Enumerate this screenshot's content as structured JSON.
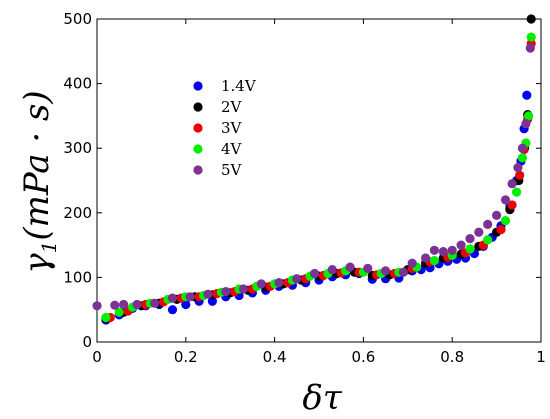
{
  "chart_data": {
    "type": "scatter",
    "title": "",
    "xlabel": "δτ",
    "ylabel_parts": {
      "symbol": "γ",
      "sub": "1",
      "units": "(mPa · s)"
    },
    "xlim": [
      0,
      1
    ],
    "ylim": [
      0,
      500
    ],
    "xticks": [
      "0",
      "0.2",
      "0.4",
      "0.6",
      "0.8",
      "1"
    ],
    "yticks": [
      "0",
      "100",
      "200",
      "300",
      "400",
      "500"
    ],
    "grid": false,
    "legend_position": "top-left-inside",
    "series": [
      {
        "name": "1.4V",
        "color": "#0000ee",
        "points": [
          [
            0.02,
            34
          ],
          [
            0.05,
            42
          ],
          [
            0.08,
            52
          ],
          [
            0.11,
            56
          ],
          [
            0.14,
            58
          ],
          [
            0.17,
            50
          ],
          [
            0.2,
            58
          ],
          [
            0.23,
            63
          ],
          [
            0.26,
            63
          ],
          [
            0.29,
            70
          ],
          [
            0.32,
            72
          ],
          [
            0.35,
            76
          ],
          [
            0.38,
            80
          ],
          [
            0.41,
            86
          ],
          [
            0.44,
            88
          ],
          [
            0.47,
            92
          ],
          [
            0.5,
            96
          ],
          [
            0.53,
            101
          ],
          [
            0.56,
            104
          ],
          [
            0.59,
            106
          ],
          [
            0.62,
            97
          ],
          [
            0.65,
            98
          ],
          [
            0.68,
            99
          ],
          [
            0.71,
            110
          ],
          [
            0.73,
            112
          ],
          [
            0.75,
            115
          ],
          [
            0.77,
            121
          ],
          [
            0.79,
            125
          ],
          [
            0.81,
            128
          ],
          [
            0.83,
            130
          ],
          [
            0.85,
            137
          ],
          [
            0.87,
            148
          ],
          [
            0.89,
            162
          ],
          [
            0.91,
            180
          ],
          [
            0.93,
            210
          ],
          [
            0.945,
            250
          ],
          [
            0.955,
            280
          ],
          [
            0.962,
            330
          ],
          [
            0.968,
            382
          ]
        ]
      },
      {
        "name": "2V",
        "color": "#000000",
        "points": [
          [
            0.02,
            36
          ],
          [
            0.06,
            46
          ],
          [
            0.1,
            56
          ],
          [
            0.14,
            60
          ],
          [
            0.18,
            66
          ],
          [
            0.22,
            70
          ],
          [
            0.26,
            73
          ],
          [
            0.3,
            76
          ],
          [
            0.34,
            80
          ],
          [
            0.38,
            85
          ],
          [
            0.42,
            90
          ],
          [
            0.46,
            96
          ],
          [
            0.5,
            102
          ],
          [
            0.54,
            106
          ],
          [
            0.58,
            108
          ],
          [
            0.62,
            103
          ],
          [
            0.66,
            104
          ],
          [
            0.7,
            112
          ],
          [
            0.74,
            122
          ],
          [
            0.78,
            130
          ],
          [
            0.82,
            136
          ],
          [
            0.86,
            148
          ],
          [
            0.9,
            170
          ],
          [
            0.93,
            205
          ],
          [
            0.95,
            250
          ],
          [
            0.963,
            300
          ],
          [
            0.97,
            352
          ],
          [
            0.978,
            500
          ]
        ]
      },
      {
        "name": "3V",
        "color": "#ee0000",
        "points": [
          [
            0.03,
            38
          ],
          [
            0.07,
            48
          ],
          [
            0.11,
            58
          ],
          [
            0.15,
            62
          ],
          [
            0.19,
            68
          ],
          [
            0.23,
            70
          ],
          [
            0.27,
            75
          ],
          [
            0.31,
            78
          ],
          [
            0.35,
            82
          ],
          [
            0.39,
            86
          ],
          [
            0.43,
            92
          ],
          [
            0.47,
            98
          ],
          [
            0.51,
            103
          ],
          [
            0.55,
            107
          ],
          [
            0.59,
            108
          ],
          [
            0.63,
            104
          ],
          [
            0.67,
            106
          ],
          [
            0.71,
            114
          ],
          [
            0.75,
            124
          ],
          [
            0.79,
            131
          ],
          [
            0.83,
            138
          ],
          [
            0.87,
            150
          ],
          [
            0.91,
            174
          ],
          [
            0.935,
            212
          ],
          [
            0.952,
            258
          ],
          [
            0.962,
            298
          ],
          [
            0.97,
            345
          ],
          [
            0.978,
            462
          ]
        ]
      },
      {
        "name": "4V",
        "color": "#00ee00",
        "points": [
          [
            0.02,
            38
          ],
          [
            0.05,
            46
          ],
          [
            0.08,
            54
          ],
          [
            0.12,
            60
          ],
          [
            0.16,
            66
          ],
          [
            0.2,
            70
          ],
          [
            0.24,
            72
          ],
          [
            0.28,
            77
          ],
          [
            0.32,
            82
          ],
          [
            0.36,
            86
          ],
          [
            0.4,
            90
          ],
          [
            0.44,
            96
          ],
          [
            0.48,
            102
          ],
          [
            0.52,
            106
          ],
          [
            0.56,
            110
          ],
          [
            0.6,
            108
          ],
          [
            0.64,
            106
          ],
          [
            0.68,
            108
          ],
          [
            0.72,
            116
          ],
          [
            0.76,
            126
          ],
          [
            0.8,
            134
          ],
          [
            0.84,
            144
          ],
          [
            0.88,
            158
          ],
          [
            0.92,
            188
          ],
          [
            0.945,
            232
          ],
          [
            0.958,
            285
          ],
          [
            0.966,
            308
          ],
          [
            0.972,
            350
          ],
          [
            0.978,
            472
          ]
        ]
      },
      {
        "name": "5V",
        "color": "#7b3294",
        "points": [
          [
            0.0,
            56
          ],
          [
            0.04,
            57
          ],
          [
            0.06,
            58
          ],
          [
            0.09,
            58
          ],
          [
            0.13,
            60
          ],
          [
            0.17,
            68
          ],
          [
            0.21,
            70
          ],
          [
            0.25,
            74
          ],
          [
            0.29,
            78
          ],
          [
            0.33,
            82
          ],
          [
            0.37,
            90
          ],
          [
            0.41,
            92
          ],
          [
            0.45,
            98
          ],
          [
            0.49,
            106
          ],
          [
            0.53,
            112
          ],
          [
            0.57,
            116
          ],
          [
            0.61,
            114
          ],
          [
            0.65,
            110
          ],
          [
            0.69,
            108
          ],
          [
            0.71,
            122
          ],
          [
            0.74,
            130
          ],
          [
            0.76,
            142
          ],
          [
            0.78,
            140
          ],
          [
            0.8,
            142
          ],
          [
            0.82,
            150
          ],
          [
            0.84,
            160
          ],
          [
            0.86,
            170
          ],
          [
            0.88,
            182
          ],
          [
            0.9,
            196
          ],
          [
            0.92,
            220
          ],
          [
            0.935,
            245
          ],
          [
            0.948,
            270
          ],
          [
            0.958,
            300
          ],
          [
            0.966,
            338
          ],
          [
            0.976,
            455
          ]
        ]
      }
    ]
  }
}
